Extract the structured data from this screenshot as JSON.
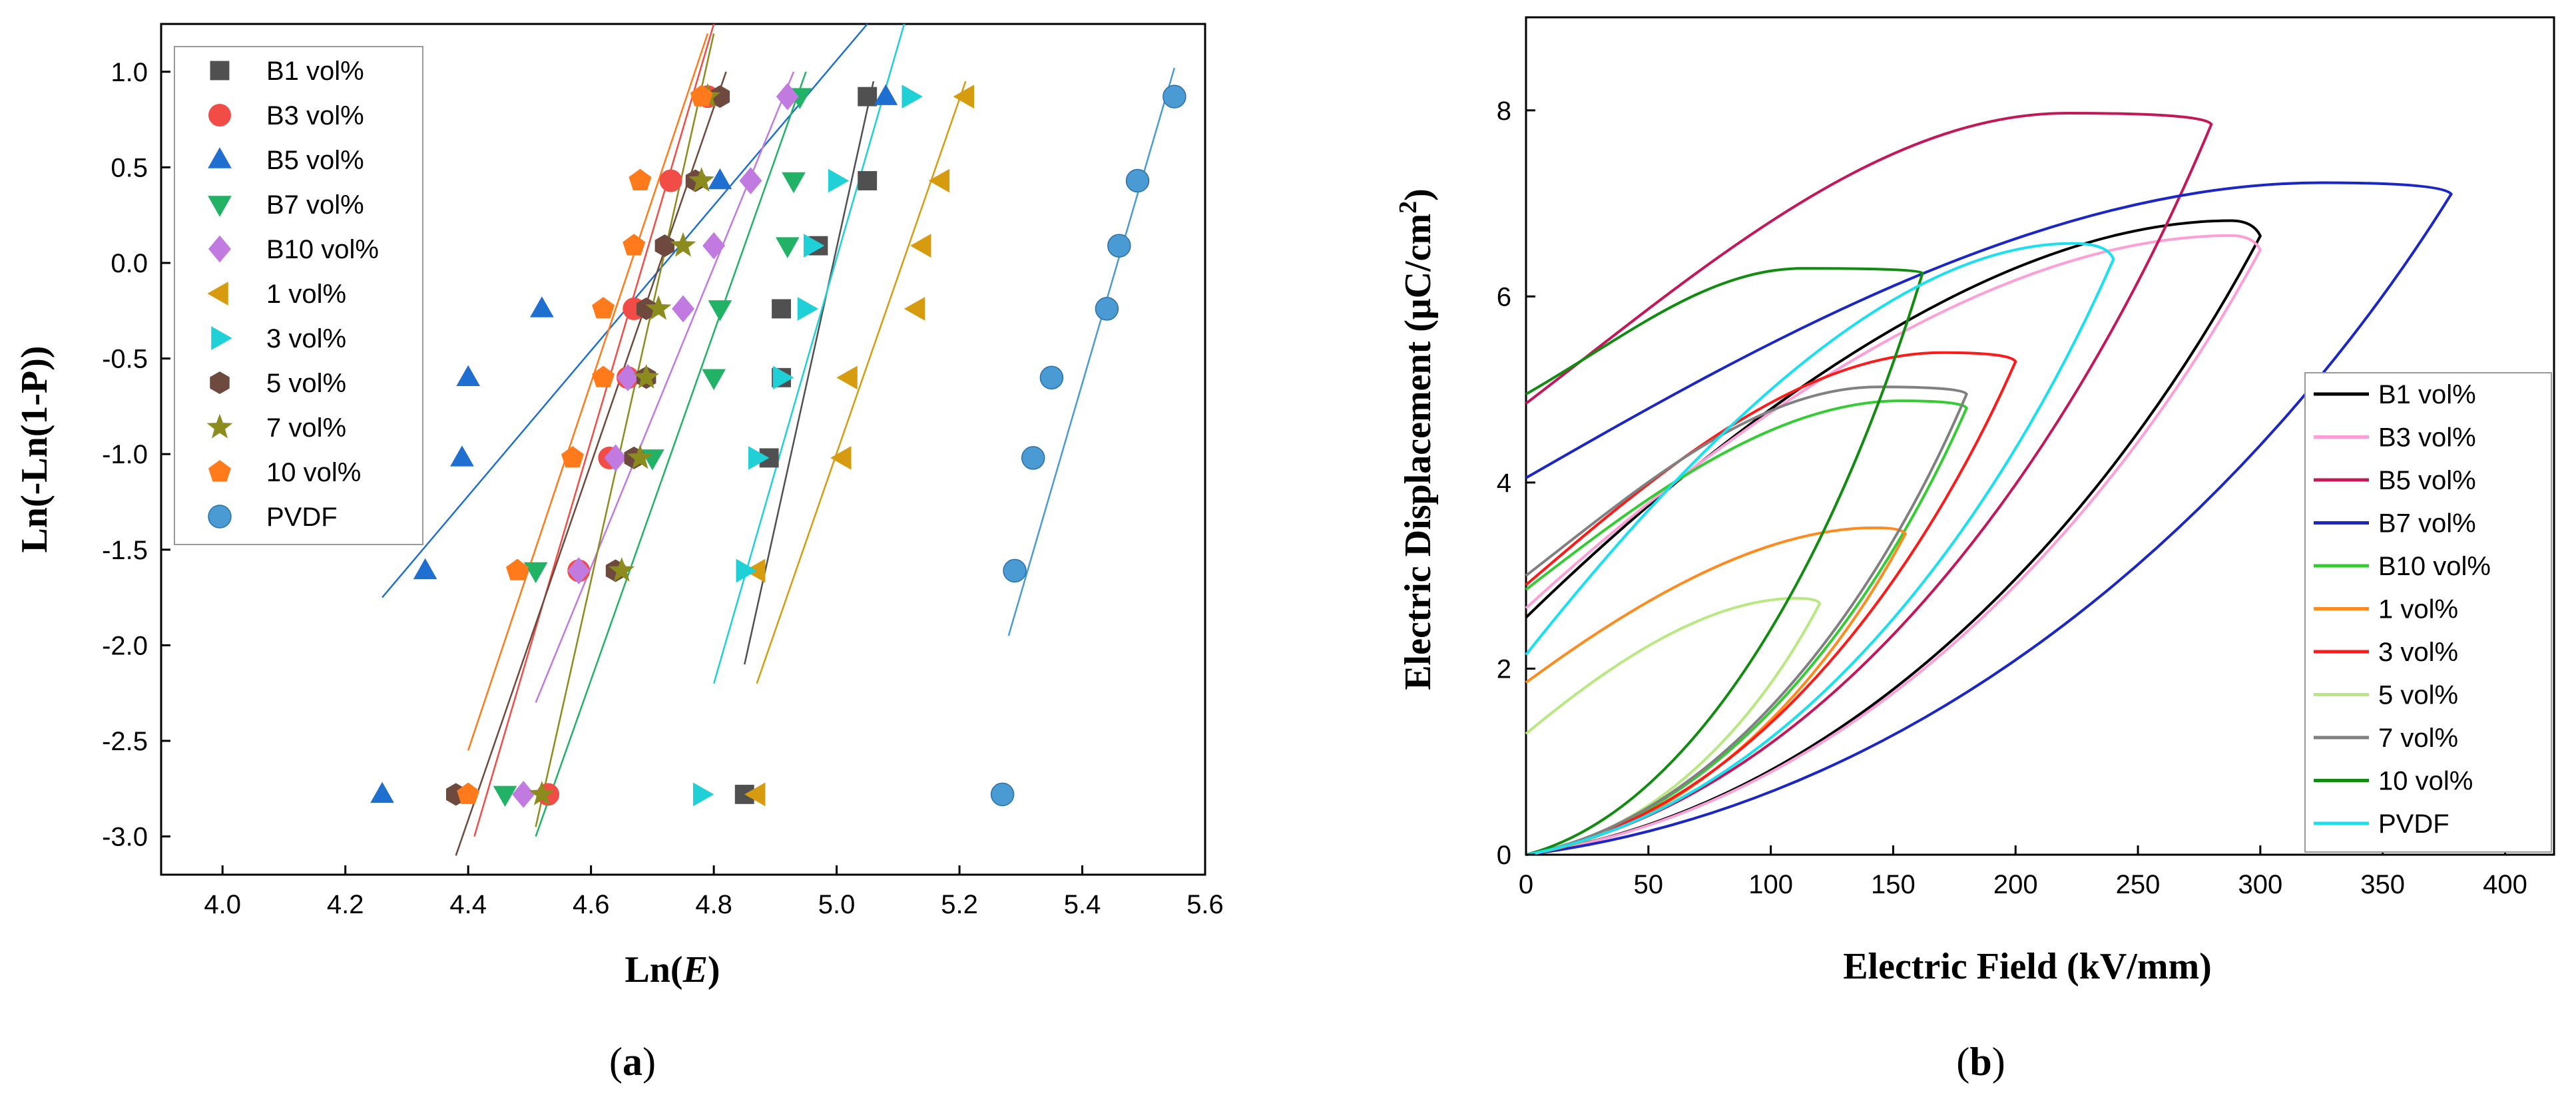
{
  "chart_data": [
    {
      "type": "scatter",
      "panel_label_prefix": "(",
      "panel_label_letter": "a",
      "panel_label_suffix": ")",
      "xlabel_prefix": "Ln(",
      "xlabel_italic": "E",
      "xlabel_suffix": ")",
      "ylabel": "Ln(-Ln(1-P))",
      "xlim": [
        3.9,
        5.6
      ],
      "ylim": [
        -3.2,
        1.25
      ],
      "xticks": [
        "4.0",
        "4.2",
        "4.4",
        "4.6",
        "4.8",
        "5.0",
        "5.2",
        "5.4",
        "5.6"
      ],
      "yticks": [
        "1.0",
        "0.5",
        "0.0",
        "-0.5",
        "-1.0",
        "-1.5",
        "-2.0",
        "-2.5",
        "-3.0"
      ],
      "legend_position": "top-left",
      "y_levels": [
        -2.78,
        -1.61,
        -1.02,
        -0.6,
        -0.24,
        0.09,
        0.43,
        0.87
      ],
      "series": [
        {
          "name": "B1 vol%",
          "color": "#505050",
          "marker": "square",
          "x": [
            4.85,
            4.89,
            4.91,
            4.91,
            4.97,
            5.05,
            5.05
          ],
          "y": [
            -2.78,
            -1.02,
            -0.6,
            -0.24,
            0.09,
            0.43,
            0.87
          ],
          "fit": [
            [
              4.85,
              -2.1
            ],
            [
              5.06,
              0.95
            ]
          ]
        },
        {
          "name": "B3 vol%",
          "color": "#f24c46",
          "marker": "circle",
          "x": [
            4.53,
            4.58,
            4.63,
            4.66,
            4.67,
            4.73,
            4.79
          ],
          "y": [
            -2.78,
            -1.61,
            -1.02,
            -0.6,
            -0.24,
            0.43,
            0.87
          ],
          "fit": [
            [
              4.41,
              -3.0
            ],
            [
              4.8,
              1.25
            ]
          ]
        },
        {
          "name": "B5 vol%",
          "color": "#1f6fd1",
          "marker": "triangle-up",
          "x": [
            4.26,
            4.33,
            4.39,
            4.4,
            4.52,
            4.81,
            5.08
          ],
          "y": [
            -2.78,
            -1.61,
            -1.02,
            -0.6,
            -0.24,
            0.43,
            0.87
          ],
          "fit": [
            [
              4.26,
              -1.75
            ],
            [
              5.05,
              1.25
            ]
          ]
        },
        {
          "name": "B7 vol%",
          "color": "#22b266",
          "marker": "triangle-down",
          "x": [
            4.46,
            4.51,
            4.7,
            4.8,
            4.81,
            4.92,
            4.93,
            4.94
          ],
          "y": [
            -2.78,
            -1.61,
            -1.02,
            -0.6,
            -0.24,
            0.09,
            0.43,
            0.87
          ],
          "fit": [
            [
              4.51,
              -3.0
            ],
            [
              4.95,
              1.0
            ]
          ]
        },
        {
          "name": "B10 vol%",
          "color": "#c07ae0",
          "marker": "diamond",
          "x": [
            4.49,
            4.58,
            4.64,
            4.66,
            4.75,
            4.8,
            4.86,
            4.92
          ],
          "y": [
            -2.78,
            -1.61,
            -1.02,
            -0.6,
            -0.24,
            0.09,
            0.43,
            0.87
          ],
          "fit": [
            [
              4.51,
              -2.3
            ],
            [
              4.93,
              1.0
            ]
          ]
        },
        {
          "name": "1 vol%",
          "color": "#d79b10",
          "marker": "triangle-left",
          "x": [
            4.87,
            4.87,
            5.01,
            5.02,
            5.13,
            5.14,
            5.17,
            5.21
          ],
          "y": [
            -2.78,
            -1.61,
            -1.02,
            -0.6,
            -0.24,
            0.09,
            0.43,
            0.87
          ],
          "fit": [
            [
              4.87,
              -2.2
            ],
            [
              5.21,
              0.95
            ]
          ]
        },
        {
          "name": "3 vol%",
          "color": "#1fd0d6",
          "marker": "triangle-right",
          "x": [
            4.78,
            4.85,
            4.87,
            4.91,
            4.95,
            4.96,
            5.0,
            5.12
          ],
          "y": [
            -2.78,
            -1.61,
            -1.02,
            -0.6,
            -0.24,
            0.09,
            0.43,
            0.87
          ],
          "fit": [
            [
              4.8,
              -2.2
            ],
            [
              5.11,
              1.25
            ]
          ]
        },
        {
          "name": "5 vol%",
          "color": "#6e4a3e",
          "marker": "hexagon",
          "x": [
            4.38,
            4.64,
            4.67,
            4.69,
            4.69,
            4.72,
            4.77,
            4.81
          ],
          "y": [
            -2.78,
            -1.61,
            -1.02,
            -0.6,
            -0.24,
            0.09,
            0.43,
            0.87
          ],
          "fit": [
            [
              4.38,
              -3.1
            ],
            [
              4.82,
              1.0
            ]
          ]
        },
        {
          "name": "7 vol%",
          "color": "#8c8c1e",
          "marker": "star",
          "x": [
            4.52,
            4.65,
            4.68,
            4.69,
            4.71,
            4.75,
            4.78,
            4.79
          ],
          "y": [
            -2.78,
            -1.61,
            -1.02,
            -0.6,
            -0.24,
            0.09,
            0.43,
            0.87
          ],
          "fit": [
            [
              4.51,
              -2.95
            ],
            [
              4.8,
              1.2
            ]
          ]
        },
        {
          "name": "10 vol%",
          "color": "#ff7a1a",
          "marker": "pentagon",
          "x": [
            4.4,
            4.48,
            4.57,
            4.62,
            4.62,
            4.67,
            4.68,
            4.78
          ],
          "y": [
            -2.78,
            -1.61,
            -1.02,
            -0.6,
            -0.24,
            0.09,
            0.43,
            0.87
          ],
          "fit": [
            [
              4.4,
              -2.55
            ],
            [
              4.79,
              1.2
            ]
          ]
        },
        {
          "name": "PVDF",
          "color": "#4a9ad4",
          "marker": "sphere",
          "x": [
            5.27,
            5.29,
            5.32,
            5.35,
            5.44,
            5.46,
            5.49,
            5.55
          ],
          "y": [
            -2.78,
            -1.61,
            -1.02,
            -0.6,
            -0.24,
            0.09,
            0.43,
            0.87
          ],
          "fit": [
            [
              5.28,
              -1.95
            ],
            [
              5.55,
              1.02
            ]
          ]
        }
      ]
    },
    {
      "type": "line",
      "panel_label_prefix": "(",
      "panel_label_letter": "b",
      "panel_label_suffix": ")",
      "xlabel": "Electric Field (kV/mm)",
      "ylabel_main": "Electric Displacement (μC/cm",
      "ylabel_sup": "2",
      "ylabel_end": ")",
      "xlim": [
        0,
        420
      ],
      "ylim": [
        0,
        9
      ],
      "xticks": [
        "0",
        "50",
        "100",
        "150",
        "200",
        "250",
        "300",
        "350",
        "400"
      ],
      "yticks": [
        "0",
        "2",
        "4",
        "6",
        "8"
      ],
      "legend_position": "bottom-right",
      "series": [
        {
          "name": "B1 vol%",
          "color": "#000000",
          "emax": 300,
          "dmax": 6.65,
          "dr": 2.55,
          "peak_frac": 0.96
        },
        {
          "name": "B3 vol%",
          "color": "#ff9ed6",
          "emax": 300,
          "dmax": 6.5,
          "dr": 2.65,
          "peak_frac": 0.96
        },
        {
          "name": "B5 vol%",
          "color": "#c4175a",
          "emax": 280,
          "dmax": 7.85,
          "dr": 4.85,
          "peak_frac": 0.79
        },
        {
          "name": "B7 vol%",
          "color": "#1a26c8",
          "emax": 378,
          "dmax": 7.1,
          "dr": 4.05,
          "peak_frac": 0.86
        },
        {
          "name": "B10 vol%",
          "color": "#33cc33",
          "emax": 180,
          "dmax": 4.8,
          "dr": 2.85,
          "peak_frac": 0.85
        },
        {
          "name": "1 vol%",
          "color": "#ff8a1e",
          "emax": 155,
          "dmax": 3.45,
          "dr": 1.85,
          "peak_frac": 0.92
        },
        {
          "name": "3 vol%",
          "color": "#ff1a1a",
          "emax": 200,
          "dmax": 5.3,
          "dr": 2.9,
          "peak_frac": 0.85
        },
        {
          "name": "5 vol%",
          "color": "#b8e880",
          "emax": 120,
          "dmax": 2.7,
          "dr": 1.3,
          "peak_frac": 0.92
        },
        {
          "name": "7 vol%",
          "color": "#808080",
          "emax": 180,
          "dmax": 4.95,
          "dr": 3.0,
          "peak_frac": 0.8
        },
        {
          "name": "10 vol%",
          "color": "#118c11",
          "emax": 162,
          "dmax": 6.25,
          "dr": 4.95,
          "peak_frac": 0.7
        },
        {
          "name": "PVDF",
          "color": "#18e0f0",
          "emax": 240,
          "dmax": 6.4,
          "dr": 2.15,
          "peak_frac": 0.93
        }
      ]
    }
  ]
}
